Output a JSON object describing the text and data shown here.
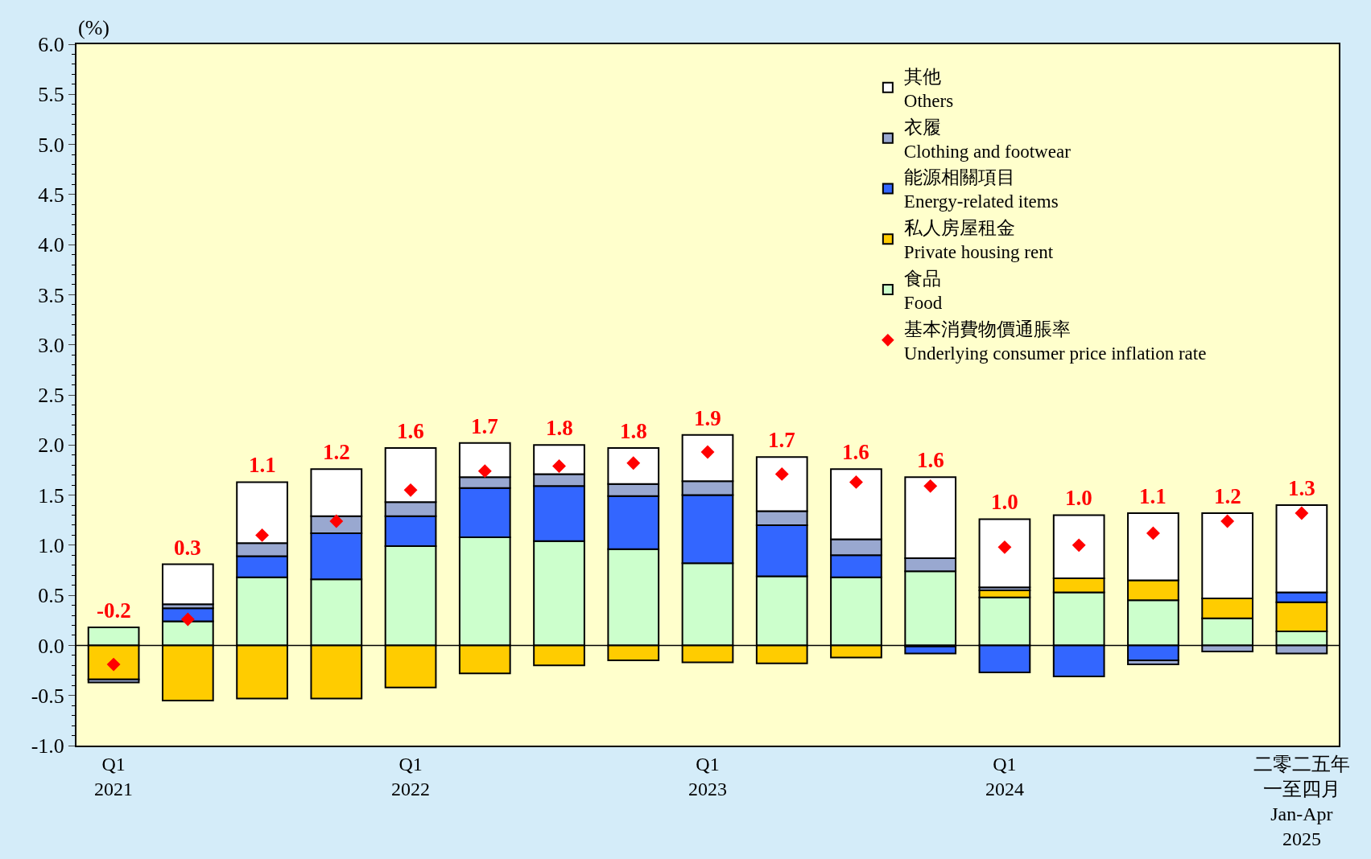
{
  "chart_data": {
    "type": "bar",
    "stacked": true,
    "ylabel": "(%)",
    "categories": [
      "Q1\n2021",
      null,
      null,
      null,
      "Q1\n2022",
      null,
      null,
      null,
      "Q1\n2023",
      null,
      null,
      null,
      "Q1\n2024",
      null,
      null,
      null,
      "二零二五年一至四月\nJan-Apr\n2025"
    ],
    "series": [
      {
        "name": "食品\nFood",
        "color": "#ccffcc",
        "values": [
          0.18,
          0.24,
          0.68,
          0.66,
          0.99,
          1.08,
          1.04,
          0.96,
          0.82,
          0.69,
          0.68,
          0.74,
          0.48,
          0.53,
          0.45,
          0.27,
          0.14
        ]
      },
      {
        "name": "私人房屋租金\nPrivate housing rent",
        "color": "#ffcc00",
        "values": [
          -0.34,
          -0.55,
          -0.53,
          -0.53,
          -0.42,
          -0.28,
          -0.2,
          -0.15,
          -0.17,
          -0.18,
          -0.12,
          -0.01,
          0.07,
          0.14,
          0.2,
          0.2,
          0.29
        ]
      },
      {
        "name": "能源相關項目\nEnergy-related items",
        "color": "#3366ff",
        "values": [
          null,
          0.13,
          0.21,
          0.46,
          0.3,
          0.49,
          0.55,
          0.53,
          0.68,
          0.51,
          0.22,
          -0.07,
          -0.27,
          -0.31,
          -0.15,
          null,
          0.1
        ]
      },
      {
        "name": "衣履\nClothing and footwear",
        "color": "#99a8d0",
        "values": [
          -0.03,
          0.04,
          0.13,
          0.17,
          0.14,
          0.11,
          0.12,
          0.12,
          0.14,
          0.14,
          0.16,
          0.13,
          0.03,
          null,
          -0.04,
          -0.06,
          -0.08
        ]
      },
      {
        "name": "其他\nOthers",
        "color": "#ffffff",
        "values": [
          null,
          0.4,
          0.61,
          0.47,
          0.54,
          0.34,
          0.29,
          0.36,
          0.46,
          0.54,
          0.7,
          0.81,
          0.68,
          0.63,
          0.67,
          0.85,
          0.87
        ]
      },
      {
        "name": "基本消費物價通脹率\nUnderlying consumer price inflation rate",
        "type": "scatter",
        "marker": "diamond",
        "color": "#ff0000",
        "values": [
          -0.19,
          0.26,
          1.1,
          1.24,
          1.55,
          1.74,
          1.79,
          1.82,
          1.93,
          1.71,
          1.63,
          1.59,
          0.98,
          1.0,
          1.12,
          1.24,
          1.32
        ],
        "value_labels": [
          "-0.2",
          "0.3",
          "1.1",
          "1.2",
          "1.6",
          "1.7",
          "1.8",
          "1.8",
          "1.9",
          "1.7",
          "1.6",
          "1.6",
          "1.0",
          "1.0",
          "1.1",
          "1.2",
          "1.3"
        ]
      }
    ],
    "ylim": [
      -1.0,
      6.0
    ],
    "yticks": [
      {
        "value": -1.0,
        "label": "-1.0"
      },
      {
        "value": -0.5,
        "label": "-0.5"
      },
      {
        "value": 0,
        "label": "0.0"
      },
      {
        "value": 0.5,
        "label": "0.5"
      },
      {
        "value": 1.0,
        "label": "1.0"
      },
      {
        "value": 1.5,
        "label": "1.5"
      },
      {
        "value": 2.0,
        "label": "2.0"
      },
      {
        "value": 2.5,
        "label": "2.5"
      },
      {
        "value": 3.0,
        "label": "3.0"
      },
      {
        "value": 3.5,
        "label": "3.5"
      },
      {
        "value": 4.0,
        "label": "4.0"
      },
      {
        "value": 4.5,
        "label": "4.5"
      },
      {
        "value": 5.0,
        "label": "5.0"
      },
      {
        "value": 5.5,
        "label": "5.5"
      },
      {
        "value": 6.0,
        "label": "6.0"
      }
    ],
    "ref_lines": [
      {
        "axis": "y",
        "value": 0,
        "color": "#000000"
      }
    ],
    "grid": false,
    "legend": "top right"
  }
}
